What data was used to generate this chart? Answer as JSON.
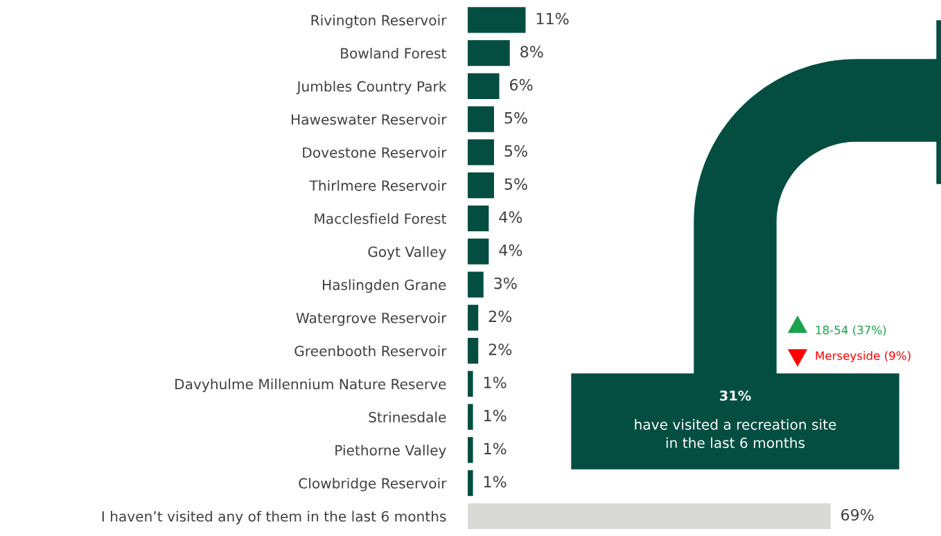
{
  "chart_data": {
    "type": "bar",
    "orientation": "horizontal",
    "categories": [
      "Rivington Reservoir",
      "Bowland Forest",
      "Jumbles Country Park",
      "Haweswater Reservoir",
      "Dovestone Reservoir",
      "Thirlmere Reservoir",
      "Macclesfield Forest",
      "Goyt Valley",
      "Haslingden Grane",
      "Watergrove Reservoir",
      "Greenbooth Reservoir",
      "Davyhulme Millennium Nature Reserve",
      "Strinesdale",
      "Piethorne Valley",
      "Clowbridge Reservoir",
      "I haven’t visited any of them in the last 6 months"
    ],
    "values": [
      11,
      8,
      6,
      5,
      5,
      5,
      4,
      4,
      3,
      2,
      2,
      1,
      1,
      1,
      1,
      69
    ],
    "colors": [
      "#034e41",
      "#034e41",
      "#034e41",
      "#034e41",
      "#034e41",
      "#034e41",
      "#034e41",
      "#034e41",
      "#034e41",
      "#034e41",
      "#034e41",
      "#034e41",
      "#034e41",
      "#034e41",
      "#034e41",
      "#d9d9d6"
    ],
    "value_labels": [
      "11%",
      "8%",
      "6%",
      "5%",
      "5%",
      "5%",
      "4%",
      "4%",
      "3%",
      "2%",
      "2%",
      "1%",
      "1%",
      "1%",
      "1%",
      "69%"
    ],
    "xlim": [
      0,
      90
    ],
    "tick_labels": "y",
    "annotations": [
      "31%",
      "have visited a recreation site\nin the last 6 months",
      "18-54 (37%)",
      "Merseyside (9%)"
    ]
  }
}
